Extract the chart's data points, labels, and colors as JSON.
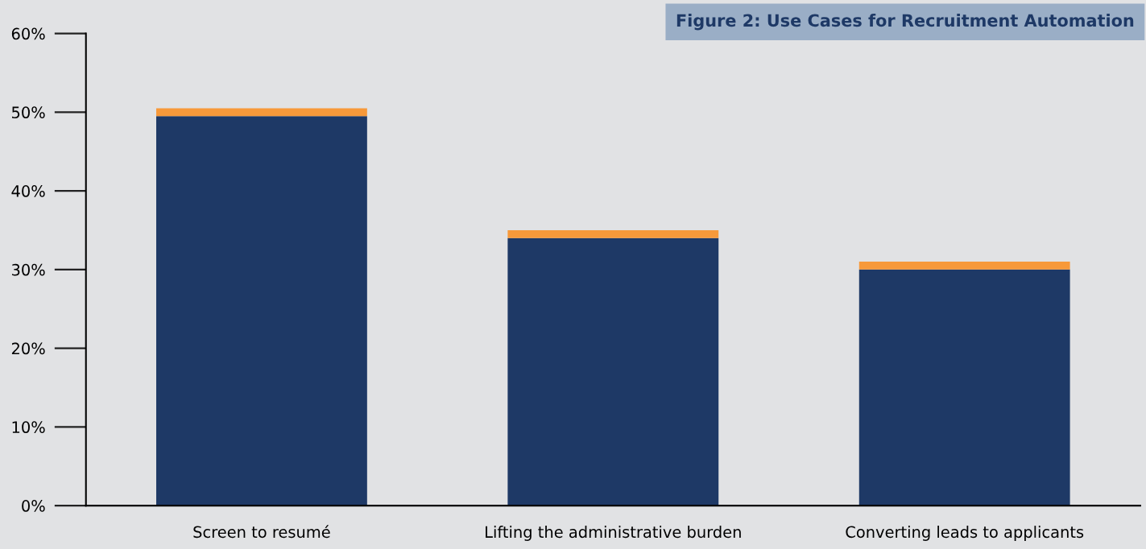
{
  "chart_data": {
    "type": "bar",
    "title": "Figure 2: Use Cases for Recruitment Automation",
    "categories": [
      "Screen to resumé",
      "Lifting the administrative burden",
      "Converting leads to applicants"
    ],
    "stacked": true,
    "series": [
      {
        "color": "#1e3966",
        "values": [
          49.5,
          34,
          30
        ]
      },
      {
        "color": "#f7993a",
        "values": [
          1,
          1,
          1
        ]
      }
    ],
    "ylim": [
      0,
      60
    ],
    "yticks": [
      {
        "value": 0,
        "label": "0%"
      },
      {
        "value": 10,
        "label": "10%"
      },
      {
        "value": 20,
        "label": "20%"
      },
      {
        "value": 30,
        "label": "30%"
      },
      {
        "value": 40,
        "label": "40%"
      },
      {
        "value": 50,
        "label": "50%"
      },
      {
        "value": 60,
        "label": "60%"
      }
    ],
    "grid": false
  }
}
